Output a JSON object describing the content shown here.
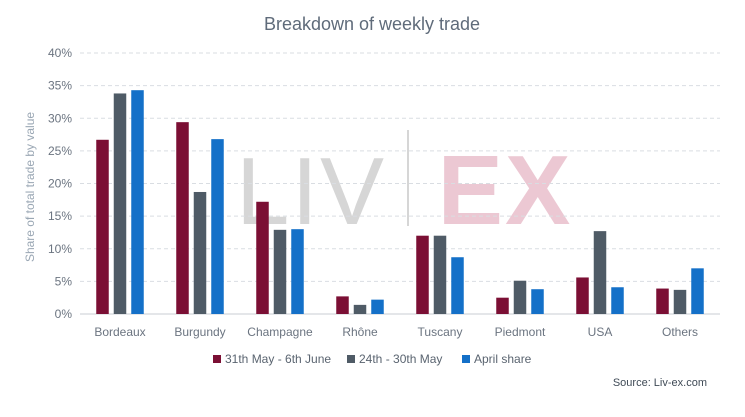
{
  "chart_data": {
    "type": "bar",
    "title": "Breakdown of weekly trade",
    "xlabel": "",
    "ylabel": "Share of total trade by value",
    "ylim": [
      0,
      40
    ],
    "y_ticks": [
      "0%",
      "5%",
      "10%",
      "15%",
      "20%",
      "25%",
      "30%",
      "35%",
      "40%"
    ],
    "grid": true,
    "legend_position": "bottom",
    "categories": [
      "Bordeaux",
      "Burgundy",
      "Champagne",
      "Rhône",
      "Tuscany",
      "Piedmont",
      "USA",
      "Others"
    ],
    "series": [
      {
        "name": "31th May - 6th June",
        "color": "#7b0f34",
        "values": [
          26.7,
          29.4,
          17.2,
          2.7,
          12.0,
          2.5,
          5.6,
          3.9
        ]
      },
      {
        "name": "24th - 30th May",
        "color": "#4f5b66",
        "values": [
          33.8,
          18.7,
          12.9,
          1.4,
          12.0,
          5.1,
          12.7,
          3.7
        ]
      },
      {
        "name": "April share",
        "color": "#1470c8",
        "values": [
          34.3,
          26.8,
          13.0,
          2.2,
          8.7,
          3.8,
          4.1,
          7.0
        ]
      }
    ],
    "watermark": {
      "left": "LIV",
      "right": "EX"
    },
    "source": "Source: Liv-ex.com"
  }
}
